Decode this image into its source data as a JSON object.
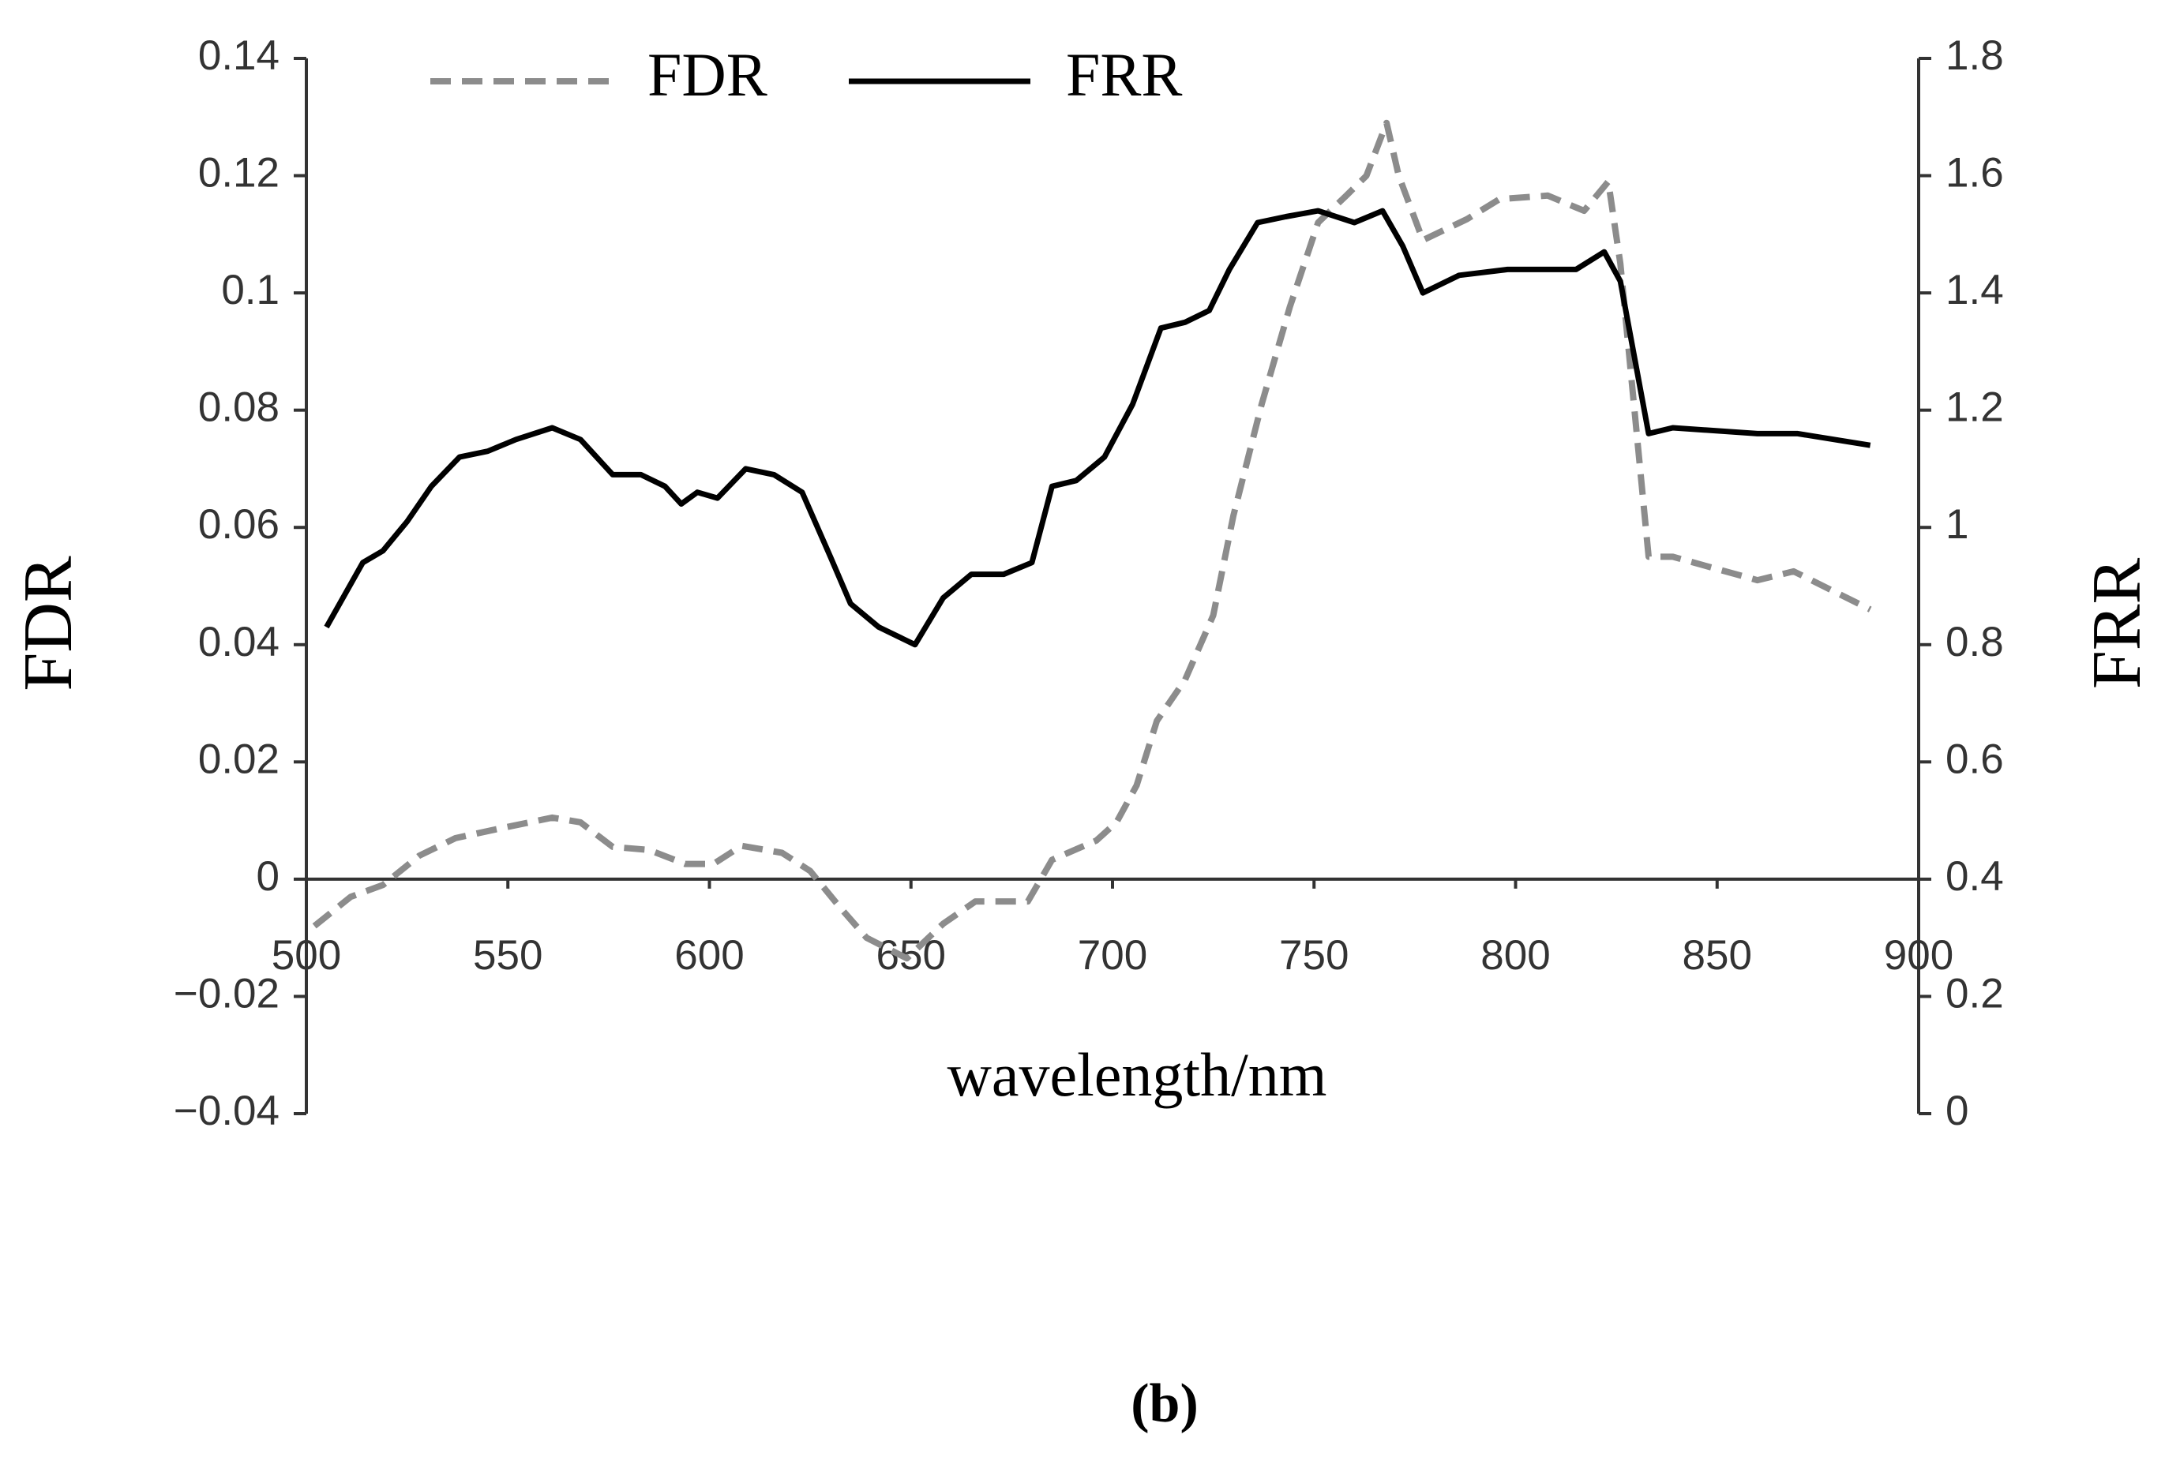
{
  "chart_data": {
    "type": "line",
    "x_label": "wavelength/nm",
    "y_label": "FDR",
    "y2_label": "FRR",
    "caption": "(b)",
    "xlim": [
      500,
      900
    ],
    "xticks": [
      500,
      550,
      600,
      650,
      700,
      750,
      800,
      850,
      900
    ],
    "ylim": [
      -0.04,
      0.14
    ],
    "yticks": [
      {
        "value": -0.04,
        "label": "−0.04"
      },
      {
        "value": -0.02,
        "label": "−0.02"
      },
      0,
      0.02,
      0.04,
      0.06,
      0.08,
      0.1,
      0.12,
      0.14
    ],
    "y2lim": [
      0,
      1.8
    ],
    "y2ticks": [
      0,
      0.2,
      0.4,
      0.6,
      0.8,
      1,
      1.2,
      1.4,
      1.6,
      1.8
    ],
    "legend": "top",
    "series": [
      {
        "name": "FDR",
        "color": "#8c8c8c",
        "dashed": true,
        "x": [
          502,
          511,
          519,
          528,
          537,
          547,
          561,
          568,
          576,
          585,
          594,
          601,
          608,
          618,
          625,
          632,
          639,
          649,
          658,
          666,
          679,
          685,
          696,
          701,
          706,
          711,
          718,
          725,
          730,
          737,
          744,
          751,
          758,
          763,
          768,
          771,
          777,
          788,
          796,
          808,
          817,
          823,
          826,
          833,
          839,
          860,
          869,
          888
        ],
        "values": [
          -0.008,
          -0.003,
          -0.001,
          0.004,
          0.007,
          0.0085,
          0.0105,
          0.0097,
          0.0055,
          0.005,
          0.0026,
          0.0026,
          0.0057,
          0.0045,
          0.0014,
          -0.0045,
          -0.01,
          -0.0135,
          -0.0076,
          -0.0038,
          -0.0038,
          0.0033,
          0.0066,
          0.0097,
          0.016,
          0.027,
          0.034,
          0.045,
          0.062,
          0.081,
          0.0976,
          0.112,
          0.1166,
          0.12,
          0.129,
          0.12,
          0.109,
          0.1126,
          0.116,
          0.1166,
          0.114,
          0.119,
          0.105,
          0.055,
          0.055,
          0.051,
          0.0525,
          0.046
        ]
      },
      {
        "name": "FRR",
        "color": "#000000",
        "dashed": false,
        "axis": "y2",
        "x": [
          505,
          514,
          519,
          525,
          531,
          538,
          545,
          552,
          561,
          568,
          576,
          583,
          589,
          593,
          597,
          602,
          609,
          616,
          623,
          630,
          635,
          642,
          651,
          658,
          665,
          673,
          680,
          685,
          691,
          698,
          705,
          712,
          718,
          724,
          729,
          736,
          743,
          751,
          760,
          767,
          772,
          777,
          786,
          798,
          815,
          822,
          826,
          833,
          839,
          860,
          870,
          888
        ],
        "values": [
          0.83,
          0.94,
          0.96,
          1.01,
          1.07,
          1.12,
          1.13,
          1.15,
          1.17,
          1.15,
          1.09,
          1.09,
          1.07,
          1.04,
          1.06,
          1.05,
          1.1,
          1.09,
          1.06,
          0.95,
          0.87,
          0.83,
          0.8,
          0.88,
          0.92,
          0.92,
          0.94,
          1.07,
          1.08,
          1.12,
          1.21,
          1.34,
          1.35,
          1.37,
          1.44,
          1.52,
          1.53,
          1.54,
          1.52,
          1.54,
          1.48,
          1.4,
          1.43,
          1.44,
          1.44,
          1.47,
          1.42,
          1.16,
          1.17,
          1.16,
          1.16,
          1.14
        ]
      }
    ]
  }
}
